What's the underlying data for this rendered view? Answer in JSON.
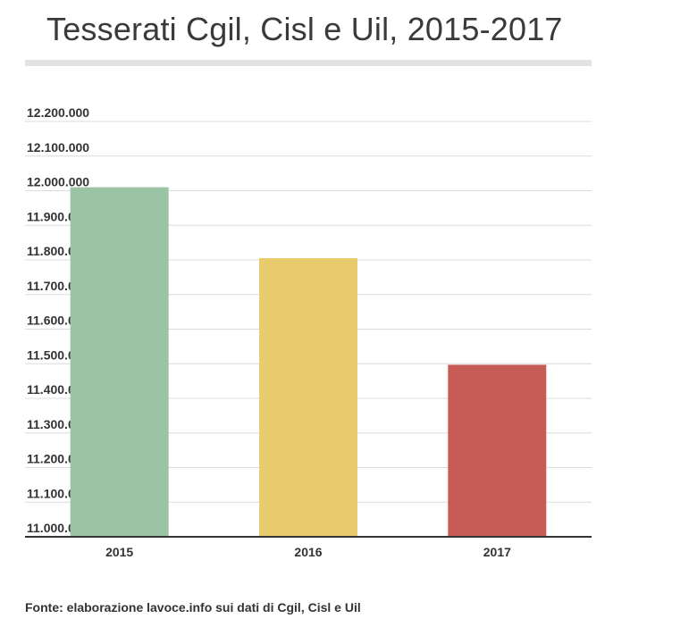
{
  "chart_data": {
    "type": "bar",
    "title": "Tesserati Cgil, Cisl e Uil, 2015-2017",
    "categories": [
      "2015",
      "2016",
      "2017"
    ],
    "values": [
      12010000,
      11805000,
      11497000
    ],
    "colors": [
      "#9bc4a5",
      "#e8cb6c",
      "#c75c56"
    ],
    "ylim": [
      11000000,
      12200000
    ],
    "yticks": [
      11000000,
      11100000,
      11200000,
      11300000,
      11400000,
      11500000,
      11600000,
      11700000,
      11800000,
      11900000,
      12000000,
      12100000,
      12200000
    ],
    "ytick_labels": [
      "11.000.000",
      "11.100.000",
      "11.200.000",
      "11.300.000",
      "11.400.000",
      "11.500.000",
      "11.600.000",
      "11.700.000",
      "11.800.000",
      "11.900.000",
      "12.000.000",
      "12.100.000",
      "12.200.000"
    ],
    "xlabel": "",
    "ylabel": "",
    "grid": true,
    "legend": "none"
  },
  "source": "Fonte: elaborazione lavoce.info sui dati di Cgil, Cisl e Uil"
}
